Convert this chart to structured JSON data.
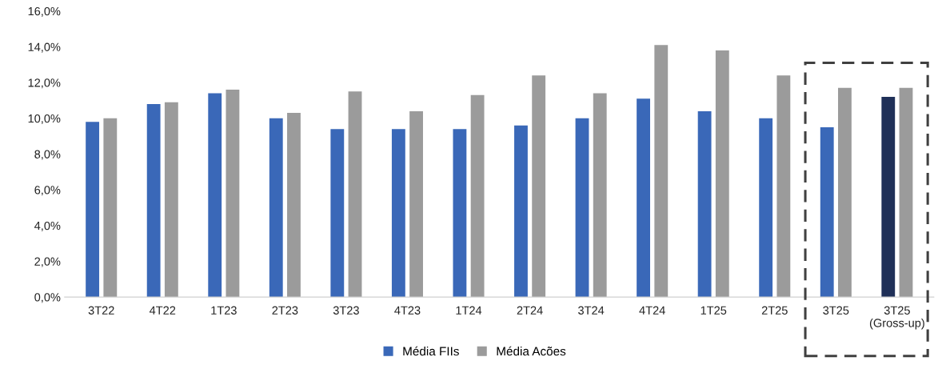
{
  "chart_data": {
    "type": "bar",
    "categories": [
      "3T22",
      "4T22",
      "1T23",
      "2T23",
      "3T23",
      "4T23",
      "1T24",
      "2T24",
      "3T24",
      "4T24",
      "1T25",
      "2T25",
      "3T25",
      "3T25\n(Gross-up)"
    ],
    "series": [
      {
        "name": "Média FIIs",
        "color": "#3a68b8",
        "colors": [
          "#3a68b8",
          "#3a68b8",
          "#3a68b8",
          "#3a68b8",
          "#3a68b8",
          "#3a68b8",
          "#3a68b8",
          "#3a68b8",
          "#3a68b8",
          "#3a68b8",
          "#3a68b8",
          "#3a68b8",
          "#3a68b8",
          "#1f3058"
        ],
        "values": [
          9.8,
          10.8,
          11.4,
          10.0,
          9.4,
          9.4,
          9.4,
          9.6,
          10.0,
          11.1,
          10.4,
          10.0,
          9.5,
          11.2
        ]
      },
      {
        "name": "Média Acões",
        "color": "#9b9b9b",
        "values": [
          10.0,
          10.9,
          11.6,
          10.3,
          11.5,
          10.4,
          11.3,
          12.4,
          11.4,
          14.1,
          13.8,
          12.4,
          11.7,
          11.7
        ]
      }
    ],
    "ylim": [
      0,
      16
    ],
    "yticks": [
      {
        "value": 0,
        "label": "0,0%"
      },
      {
        "value": 2,
        "label": "2,0%"
      },
      {
        "value": 4,
        "label": "4,0%"
      },
      {
        "value": 6,
        "label": "6,0%"
      },
      {
        "value": 8,
        "label": "8,0%"
      },
      {
        "value": 10,
        "label": "10,0%"
      },
      {
        "value": 12,
        "label": "12,0%"
      },
      {
        "value": 14,
        "label": "14,0%"
      },
      {
        "value": 16,
        "label": "16,0%"
      }
    ],
    "grid": false,
    "legend": "bottom"
  }
}
